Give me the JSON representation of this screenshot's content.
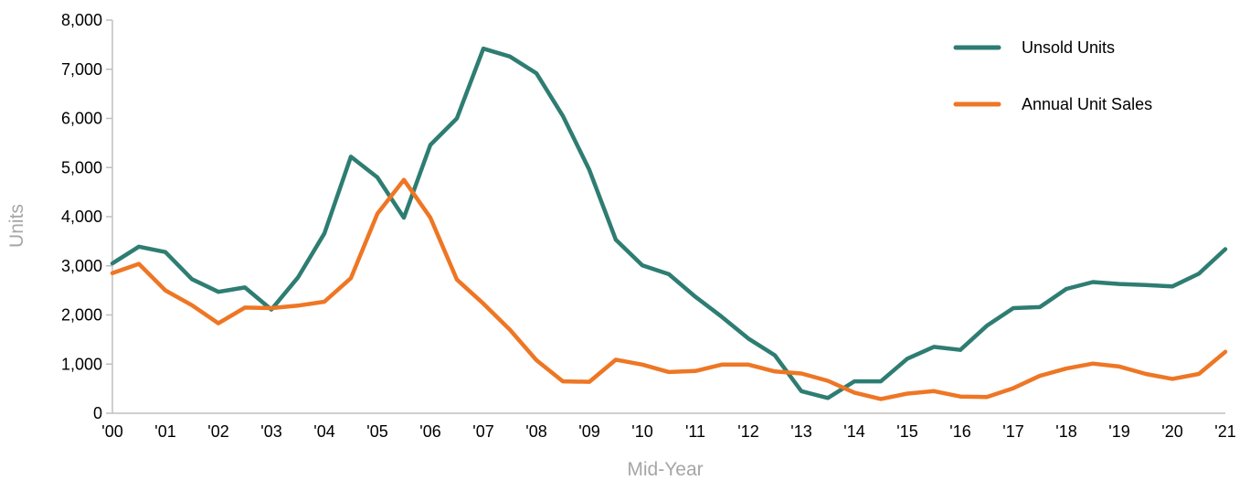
{
  "chart_data": {
    "type": "line",
    "xlabel": "Mid-Year",
    "ylabel": "Units",
    "ylim": [
      0,
      8000
    ],
    "y_ticks": [
      0,
      1000,
      2000,
      3000,
      4000,
      5000,
      6000,
      7000,
      8000
    ],
    "y_tick_labels": [
      "0",
      "1,000",
      "2,000",
      "3,000",
      "4,000",
      "5,000",
      "6,000",
      "7,000",
      "8,000"
    ],
    "x_tick_labels": [
      "'00",
      "'01",
      "'02",
      "'03",
      "'04",
      "'05",
      "'06",
      "'07",
      "'08",
      "'09",
      "'10",
      "'11",
      "'12",
      "'13",
      "'14",
      "'15",
      "'16",
      "'17",
      "'18",
      "'19",
      "'20",
      "'21"
    ],
    "x": [
      2000,
      2000.5,
      2001,
      2001.5,
      2002,
      2002.5,
      2003,
      2003.5,
      2004,
      2004.5,
      2005,
      2005.5,
      2006,
      2006.5,
      2007,
      2007.5,
      2008,
      2008.5,
      2009,
      2009.5,
      2010,
      2010.5,
      2011,
      2011.5,
      2012,
      2012.5,
      2013,
      2013.5,
      2014,
      2014.5,
      2015,
      2015.5,
      2016,
      2016.5,
      2017,
      2017.5,
      2018,
      2018.5,
      2019,
      2019.5,
      2020,
      2020.5,
      2021
    ],
    "grid": false,
    "legend_position": "top-right",
    "series": [
      {
        "name": "Unsold Units",
        "color": "#2e7d72",
        "values": [
          3050,
          3390,
          3280,
          2730,
          2470,
          2560,
          2110,
          2760,
          3660,
          5220,
          4800,
          3980,
          5460,
          6000,
          7420,
          7260,
          6920,
          6050,
          4950,
          3530,
          3010,
          2830,
          2370,
          1960,
          1520,
          1180,
          450,
          310,
          650,
          650,
          1110,
          1350,
          1290,
          1780,
          2140,
          2160,
          2530,
          2670,
          2630,
          2610,
          2580,
          2840,
          3340
        ]
      },
      {
        "name": "Annual Unit Sales",
        "color": "#ee7624",
        "values": [
          2850,
          3040,
          2500,
          2200,
          1830,
          2150,
          2140,
          2190,
          2270,
          2750,
          4060,
          4750,
          3980,
          2720,
          2230,
          1700,
          1080,
          650,
          640,
          1090,
          990,
          840,
          860,
          990,
          990,
          850,
          810,
          660,
          420,
          290,
          400,
          450,
          340,
          330,
          510,
          760,
          910,
          1010,
          950,
          800,
          700,
          800,
          1250
        ]
      }
    ]
  }
}
